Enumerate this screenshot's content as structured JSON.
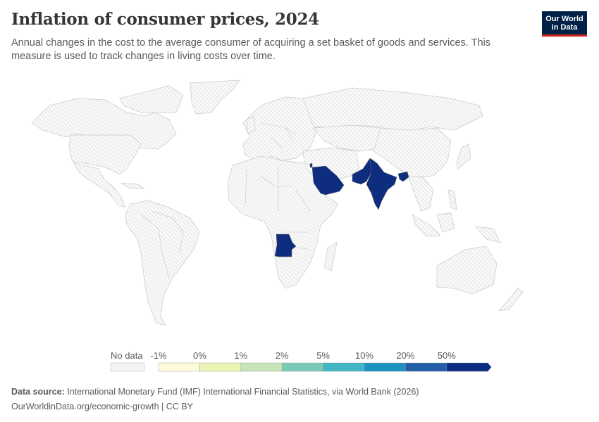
{
  "header": {
    "title": "Inflation of consumer prices, 2024",
    "subtitle": "Annual changes in the cost to the average consumer of acquiring a set basket of goods and services. This measure is used to track changes in living costs over time.",
    "logo_line1": "Our World",
    "logo_line2": "in Data"
  },
  "chart_data": {
    "type": "choropleth",
    "title": "Inflation of consumer prices, 2024",
    "year": 2024,
    "unit": "%",
    "no_data_color": "#e0e0e0",
    "bins": [
      {
        "from": "-1%",
        "to": "0%",
        "color": "#fefcd8"
      },
      {
        "from": "0%",
        "to": "1%",
        "color": "#eaf3b3"
      },
      {
        "from": "1%",
        "to": "2%",
        "color": "#c5e4b7"
      },
      {
        "from": "2%",
        "to": "5%",
        "color": "#7bcab8"
      },
      {
        "from": "5%",
        "to": "10%",
        "color": "#41b6c4"
      },
      {
        "from": "10%",
        "to": "20%",
        "color": "#1d91c0"
      },
      {
        "from": "20%",
        "to": "50%",
        "color": "#225ea8"
      },
      {
        "from": "50%",
        "to": null,
        "color": "#0c2c84"
      }
    ],
    "countries_with_data": [
      {
        "name": "Angola",
        "bin": ">50%"
      },
      {
        "name": "Saudi Arabia",
        "bin": ">50%"
      },
      {
        "name": "Pakistan",
        "bin": ">50%"
      },
      {
        "name": "India",
        "bin": ">50%"
      },
      {
        "name": "Lebanon",
        "bin": ">50%"
      }
    ],
    "all_other_countries": "No data"
  },
  "legend": {
    "no_data_label": "No data",
    "tick_labels": [
      "-1%",
      "0%",
      "1%",
      "2%",
      "5%",
      "10%",
      "20%",
      "50%"
    ]
  },
  "footer": {
    "source_label": "Data source:",
    "source_text": "International Monetary Fund (IMF) International Financial Statistics, via World Bank (2026)",
    "url_text": "OurWorldinData.org/economic-growth | CC BY"
  }
}
